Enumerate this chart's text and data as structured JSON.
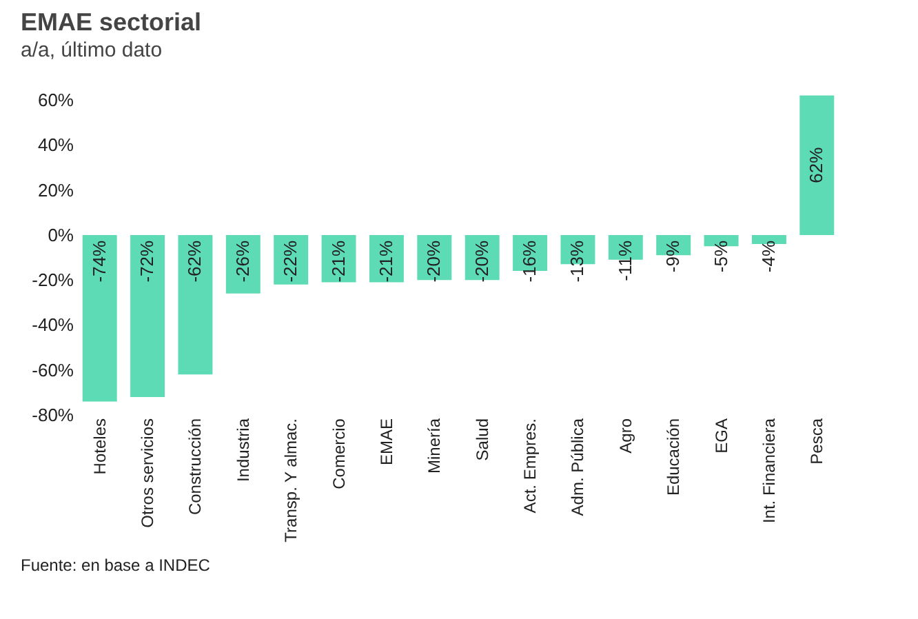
{
  "chart_data": {
    "type": "bar",
    "title": "EMAE sectorial",
    "subtitle": "a/a, último dato",
    "categories": [
      "Hoteles",
      "Otros servicios",
      "Construcción",
      "Industria",
      "Transp. Y almac.",
      "Comercio",
      "EMAE",
      "Minería",
      "Salud",
      "Act. Empres.",
      "Adm. Pública",
      "Agro",
      "Educación",
      "EGA",
      "Int. Financiera",
      "Pesca"
    ],
    "values": [
      -74,
      -72,
      -62,
      -26,
      -22,
      -21,
      -21,
      -20,
      -20,
      -16,
      -13,
      -11,
      -9,
      -5,
      -4,
      62
    ],
    "value_labels": [
      "-74%",
      "-72%",
      "-62%",
      "-26%",
      "-22%",
      "-21%",
      "-21%",
      "-20%",
      "-20%",
      "-16%",
      "-13%",
      "-11%",
      "-9%",
      "-5%",
      "-4%",
      "62%"
    ],
    "color": "#5ddbb5",
    "ylim": [
      -80,
      64
    ],
    "yticks": [
      {
        "value": 60,
        "label": "60%"
      },
      {
        "value": 40,
        "label": "40%"
      },
      {
        "value": 20,
        "label": "20%"
      },
      {
        "value": 0,
        "label": "0%"
      },
      {
        "value": -20,
        "label": "-20%"
      },
      {
        "value": -40,
        "label": "-40%"
      },
      {
        "value": -60,
        "label": "-60%"
      },
      {
        "value": -80,
        "label": "-80%"
      }
    ],
    "grid": false,
    "annotations": [
      "Fuente: en base a INDEC"
    ]
  }
}
